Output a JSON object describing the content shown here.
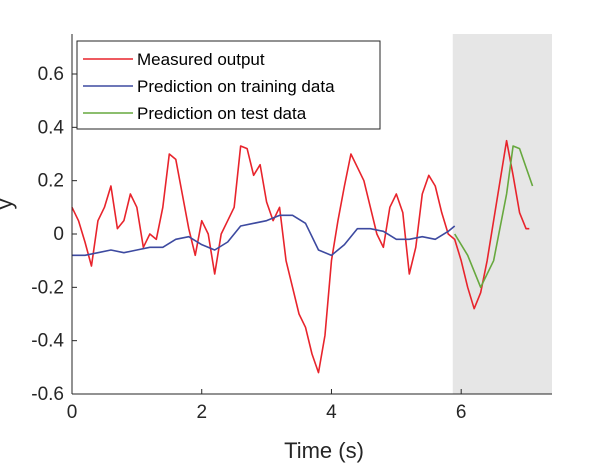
{
  "chart_data": {
    "type": "line",
    "title": "",
    "xlabel": "Time (s)",
    "ylabel": "y",
    "xlim": [
      0,
      7.4
    ],
    "ylim": [
      -0.6,
      0.75
    ],
    "xticks": [
      0,
      2,
      4,
      6
    ],
    "xtick_labels": [
      "0",
      "2",
      "4",
      "6"
    ],
    "yticks": [
      -0.6,
      -0.4,
      -0.2,
      0,
      0.2,
      0.4,
      0.6
    ],
    "ytick_labels": [
      "-0.6",
      "-0.4",
      "-0.2",
      "0",
      "0.2",
      "0.4",
      "0.6"
    ],
    "grid": false,
    "legend_position": "top-left",
    "shaded_region": {
      "x_start": 5.87,
      "x_end": 7.4,
      "color": "#e6e6e6"
    },
    "series": [
      {
        "name": "Measured output",
        "color": "#e8242c",
        "x": [
          0,
          0.1,
          0.2,
          0.3,
          0.4,
          0.5,
          0.6,
          0.7,
          0.8,
          0.9,
          1.0,
          1.1,
          1.2,
          1.3,
          1.4,
          1.5,
          1.6,
          1.7,
          1.8,
          1.9,
          2.0,
          2.1,
          2.2,
          2.3,
          2.4,
          2.5,
          2.6,
          2.7,
          2.8,
          2.9,
          3.0,
          3.1,
          3.2,
          3.3,
          3.4,
          3.5,
          3.6,
          3.7,
          3.8,
          3.9,
          4.0,
          4.1,
          4.2,
          4.3,
          4.4,
          4.5,
          4.6,
          4.7,
          4.8,
          4.9,
          5.0,
          5.1,
          5.2,
          5.3,
          5.4,
          5.5,
          5.6,
          5.7,
          5.8,
          5.9,
          6.0,
          6.1,
          6.2,
          6.3,
          6.4,
          6.5,
          6.6,
          6.7,
          6.8,
          6.9,
          7.0,
          7.05
        ],
        "y": [
          0.1,
          0.05,
          -0.03,
          -0.12,
          0.05,
          0.1,
          0.18,
          0.02,
          0.05,
          0.15,
          0.1,
          -0.05,
          0.0,
          -0.02,
          0.1,
          0.3,
          0.28,
          0.15,
          0.02,
          -0.08,
          0.05,
          0.0,
          -0.15,
          0.0,
          0.05,
          0.1,
          0.33,
          0.32,
          0.22,
          0.26,
          0.12,
          0.05,
          0.1,
          -0.1,
          -0.2,
          -0.3,
          -0.35,
          -0.45,
          -0.52,
          -0.38,
          -0.1,
          0.05,
          0.18,
          0.3,
          0.25,
          0.2,
          0.1,
          0.0,
          -0.05,
          0.1,
          0.15,
          0.08,
          -0.15,
          -0.05,
          0.15,
          0.22,
          0.18,
          0.08,
          0.0,
          -0.02,
          -0.1,
          -0.2,
          -0.28,
          -0.22,
          -0.1,
          0.05,
          0.2,
          0.35,
          0.22,
          0.08,
          0.02,
          0.02
        ]
      },
      {
        "name": "Prediction on training data",
        "color": "#3d4aa0",
        "x": [
          0,
          0.2,
          0.4,
          0.6,
          0.8,
          1.0,
          1.2,
          1.4,
          1.6,
          1.8,
          2.0,
          2.2,
          2.4,
          2.6,
          2.8,
          3.0,
          3.2,
          3.4,
          3.6,
          3.8,
          4.0,
          4.2,
          4.4,
          4.6,
          4.8,
          5.0,
          5.2,
          5.4,
          5.6,
          5.8,
          5.9
        ],
        "y": [
          -0.08,
          -0.08,
          -0.07,
          -0.06,
          -0.07,
          -0.06,
          -0.05,
          -0.05,
          -0.02,
          -0.01,
          -0.04,
          -0.06,
          -0.03,
          0.03,
          0.04,
          0.05,
          0.07,
          0.07,
          0.04,
          -0.06,
          -0.08,
          -0.04,
          0.02,
          0.02,
          0.01,
          -0.02,
          -0.02,
          -0.01,
          -0.02,
          0.01,
          0.03
        ]
      },
      {
        "name": "Prediction on test data",
        "color": "#67a83e",
        "x": [
          5.9,
          6.1,
          6.3,
          6.5,
          6.7,
          6.8,
          6.9,
          7.0,
          7.1
        ],
        "y": [
          0.0,
          -0.08,
          -0.2,
          -0.1,
          0.15,
          0.33,
          0.32,
          0.25,
          0.18
        ]
      }
    ]
  }
}
